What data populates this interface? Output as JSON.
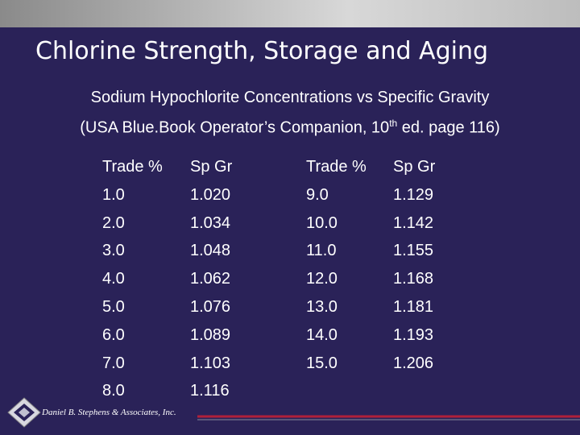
{
  "header": {
    "title": "Chlorine Strength, Storage and Aging"
  },
  "subtitle": {
    "line1": "Sodium Hypochlorite Concentrations vs Specific Gravity",
    "line2_start": "(USA Blue.Book Operator’s Companion, 10",
    "line2_sup": "th",
    "line2_end": " ed. page 116)"
  },
  "tables": [
    {
      "headers": [
        "Trade %",
        "Sp Gr"
      ],
      "rows": [
        [
          "1.0",
          "1.020"
        ],
        [
          "2.0",
          "1.034"
        ],
        [
          "3.0",
          "1.048"
        ],
        [
          "4.0",
          "1.062"
        ],
        [
          "5.0",
          "1.076"
        ],
        [
          "6.0",
          "1.089"
        ],
        [
          "7.0",
          "1.103"
        ],
        [
          "8.0",
          "1.116"
        ]
      ]
    },
    {
      "headers": [
        "Trade %",
        "Sp Gr"
      ],
      "rows": [
        [
          "9.0",
          "1.129"
        ],
        [
          "10.0",
          "1.142"
        ],
        [
          "11.0",
          "1.155"
        ],
        [
          "12.0",
          "1.168"
        ],
        [
          "13.0",
          "1.181"
        ],
        [
          "14.0",
          "1.193"
        ],
        [
          "15.0",
          "1.206"
        ]
      ]
    }
  ],
  "footer": {
    "company": "Daniel B. Stephens & Associates, Inc."
  }
}
